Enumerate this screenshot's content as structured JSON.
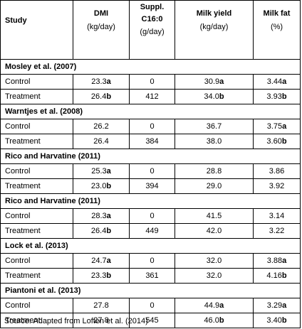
{
  "headers": {
    "study": "Study",
    "dmi": {
      "title": "DMI",
      "unit": "(kg/day)"
    },
    "suppl": {
      "title": "Suppl.",
      "title2": "C16:0",
      "unit": "(g/day)"
    },
    "milk_yield": {
      "title": "Milk yield",
      "unit": "(kg/day)"
    },
    "milk_fat": {
      "title": "Milk fat",
      "unit": "(%)"
    }
  },
  "studies": [
    {
      "name": "Mosley et al. (2007)",
      "rows": [
        {
          "label": "Control",
          "dmi": "23.3",
          "dmi_sup": "a",
          "suppl": "0",
          "milk_yield": "30.9",
          "my_sup": "a",
          "milk_fat": "3.44",
          "mf_sup": "a"
        },
        {
          "label": "Treatment",
          "dmi": "26.4",
          "dmi_sup": "b",
          "suppl": "412",
          "milk_yield": "34.0",
          "my_sup": "b",
          "milk_fat": "3.93",
          "mf_sup": "b"
        }
      ]
    },
    {
      "name": "Warntjes et al. (2008)",
      "rows": [
        {
          "label": "Control",
          "dmi": "26.2",
          "dmi_sup": "",
          "suppl": "0",
          "milk_yield": "36.7",
          "my_sup": "",
          "milk_fat": "3.75",
          "mf_sup": "a"
        },
        {
          "label": "Treatment",
          "dmi": "26.4",
          "dmi_sup": "",
          "suppl": "384",
          "milk_yield": "38.0",
          "my_sup": "",
          "milk_fat": "3.60",
          "mf_sup": "b"
        }
      ]
    },
    {
      "name": "Rico and Harvatine (2011)",
      "rows": [
        {
          "label": "Control",
          "dmi": "25.3",
          "dmi_sup": "a",
          "suppl": "0",
          "milk_yield": "28.8",
          "my_sup": "",
          "milk_fat": "3.86",
          "mf_sup": ""
        },
        {
          "label": "Treatment",
          "dmi": "23.0",
          "dmi_sup": "b",
          "suppl": "394",
          "milk_yield": "29.0",
          "my_sup": "",
          "milk_fat": "3.92",
          "mf_sup": ""
        }
      ]
    },
    {
      "name": "Rico and Harvatine (2011)",
      "rows": [
        {
          "label": "Control",
          "dmi": "28.3",
          "dmi_sup": "a",
          "suppl": "0",
          "milk_yield": "41.5",
          "my_sup": "",
          "milk_fat": "3.14",
          "mf_sup": ""
        },
        {
          "label": "Treatment",
          "dmi": "26.4",
          "dmi_sup": "b",
          "suppl": "449",
          "milk_yield": "42.0",
          "my_sup": "",
          "milk_fat": "3.22",
          "mf_sup": ""
        }
      ]
    },
    {
      "name": "Lock et al. (2013)",
      "rows": [
        {
          "label": "Control",
          "dmi": "24.7",
          "dmi_sup": "a",
          "suppl": "0",
          "milk_yield": "32.0",
          "my_sup": "",
          "milk_fat": "3.88",
          "mf_sup": "a"
        },
        {
          "label": "Treatment",
          "dmi": "23.3",
          "dmi_sup": "b",
          "suppl": "361",
          "milk_yield": "32.0",
          "my_sup": "",
          "milk_fat": "4.16",
          "mf_sup": "b"
        }
      ]
    },
    {
      "name": "Piantoni et al. (2013)",
      "rows": [
        {
          "label": "Control",
          "dmi": "27.8",
          "dmi_sup": "",
          "suppl": "0",
          "milk_yield": "44.9",
          "my_sup": "a",
          "milk_fat": "3.29",
          "mf_sup": "a"
        },
        {
          "label": "Treatment",
          "dmi": "27.8",
          "dmi_sup": "",
          "suppl": "545",
          "milk_yield": "46.0",
          "my_sup": "b",
          "milk_fat": "3.40",
          "mf_sup": "b"
        }
      ]
    }
  ],
  "source": "Source: Adapted from Loften et al. (2014)"
}
